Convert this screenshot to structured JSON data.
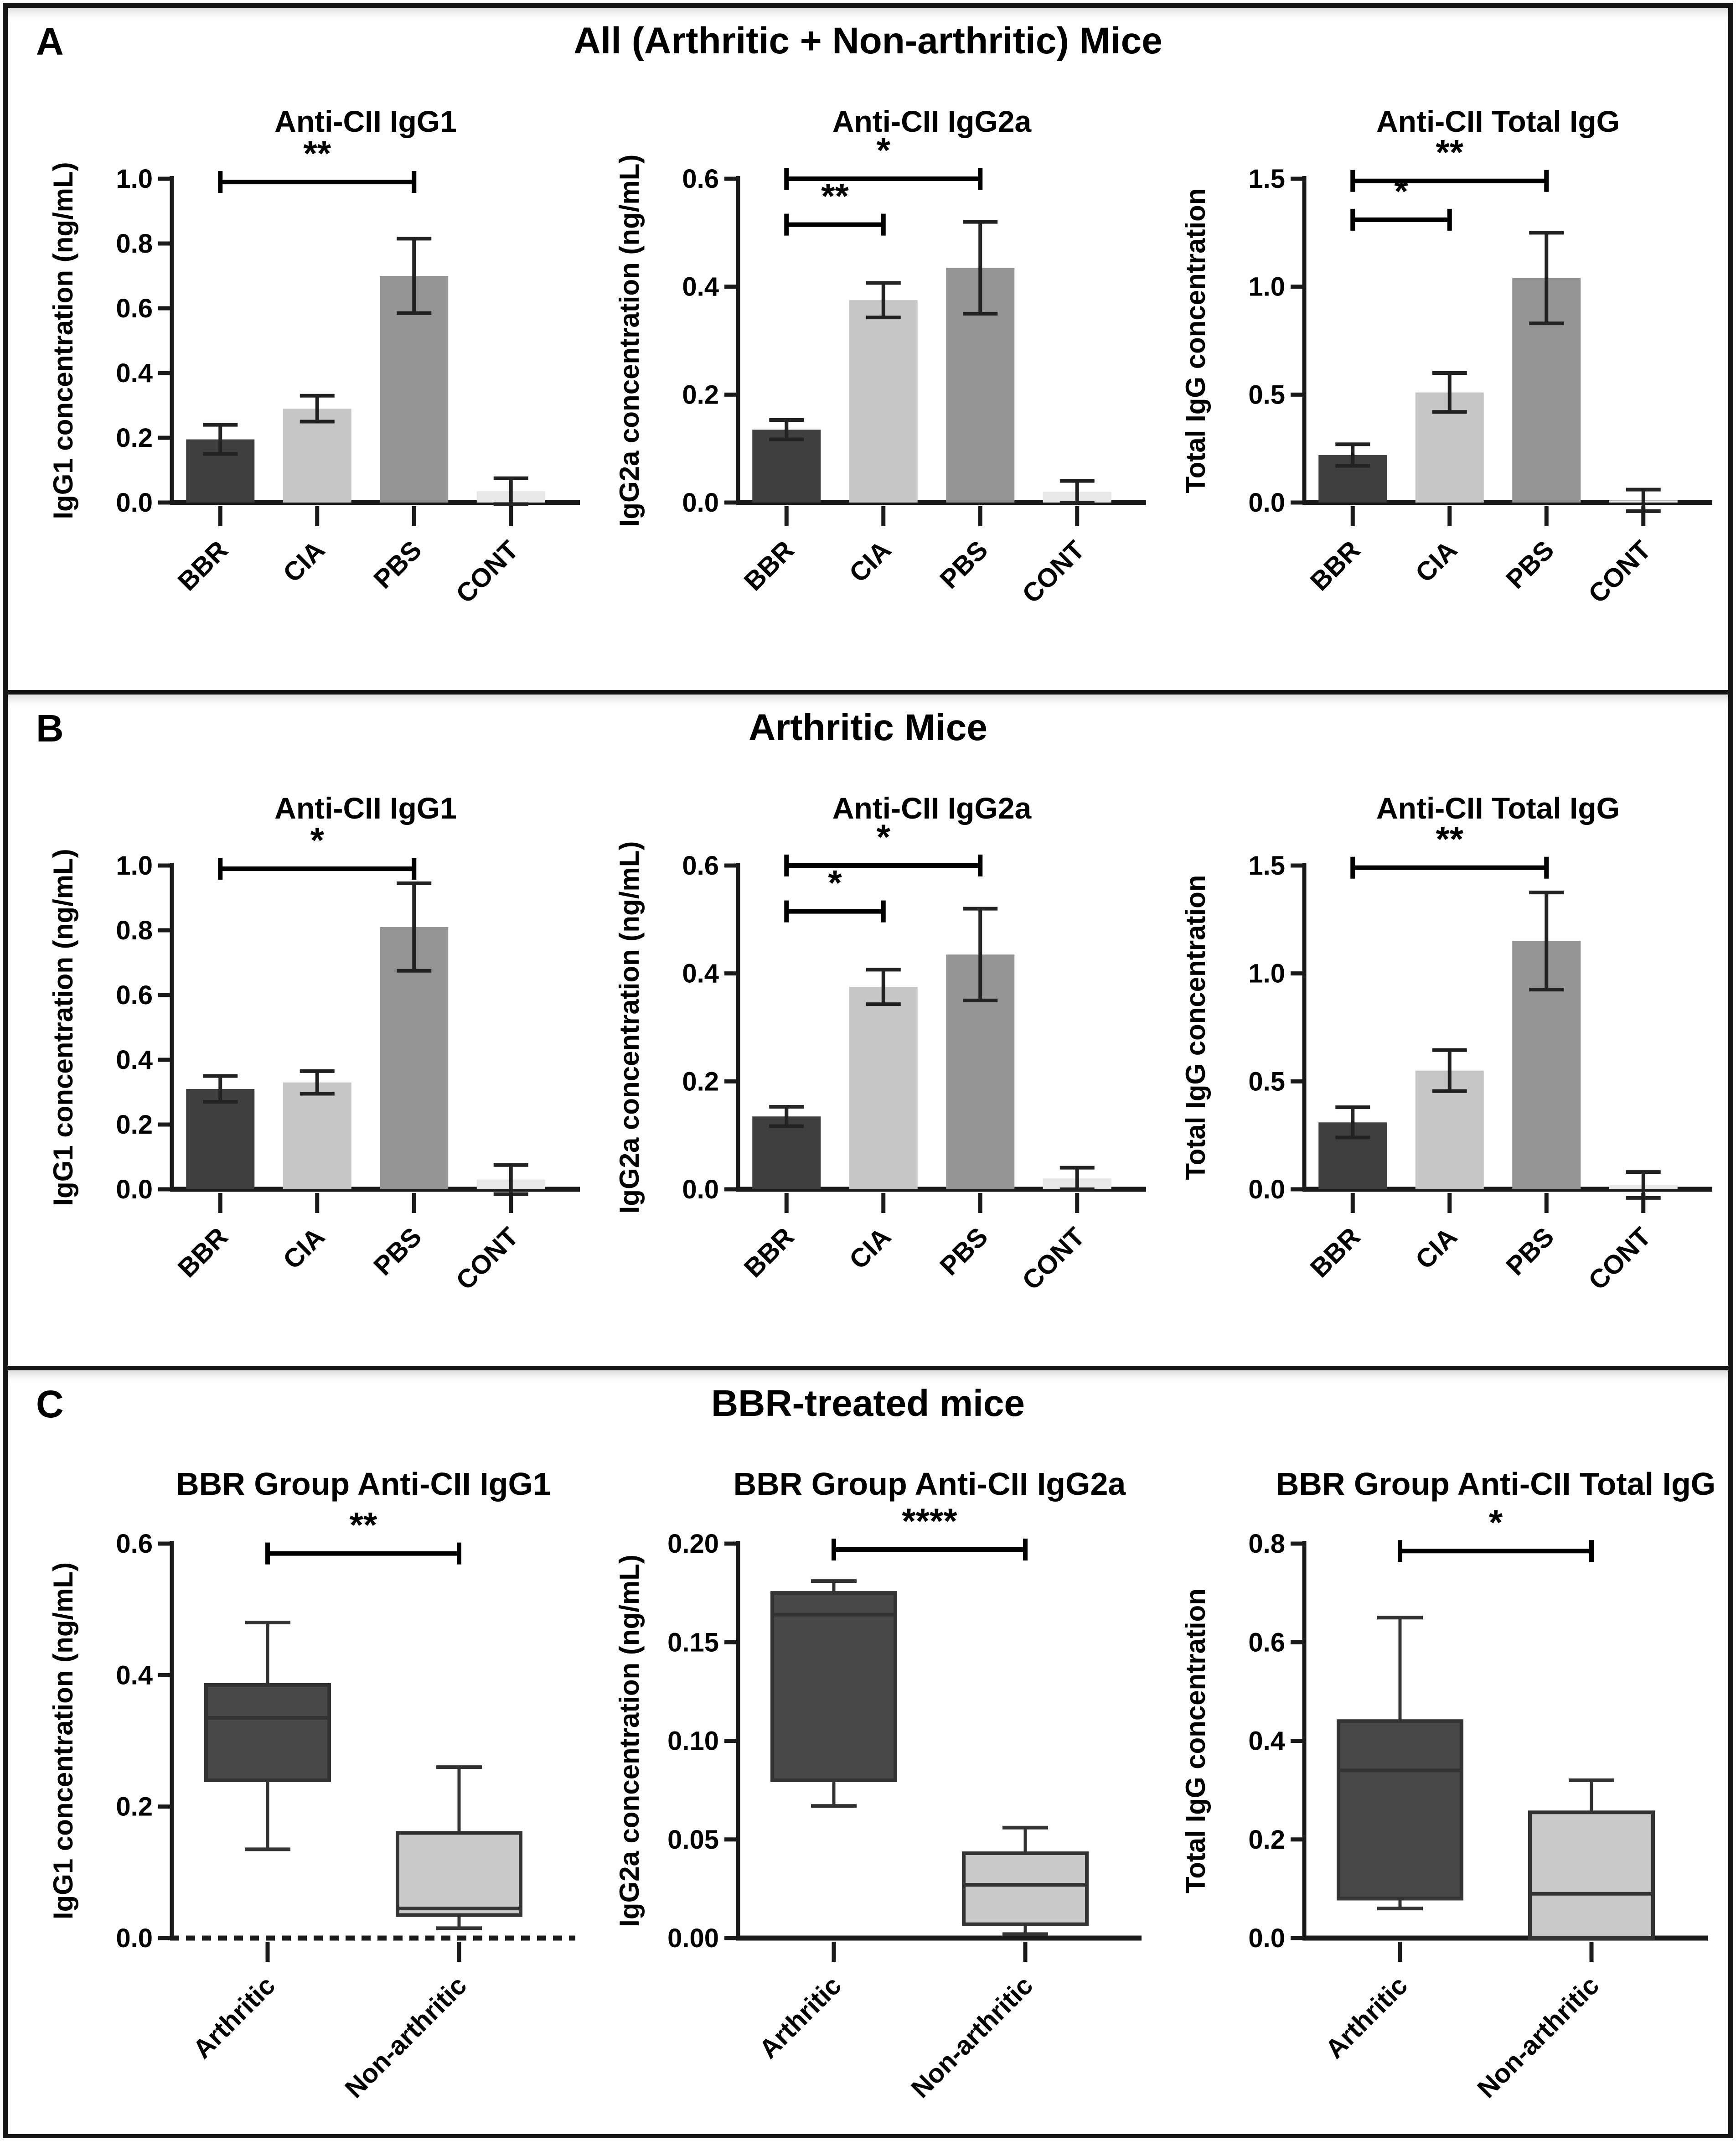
{
  "colors": {
    "axis": "#1a1a1a",
    "error_bar": "#222222",
    "bar_dark": "#3f3f3f",
    "bar_light": "#c6c6c6",
    "bar_mid": "#949494",
    "bar_faint": "#e8e8e8",
    "box_dark": "#484848",
    "box_light": "#c9c9c9",
    "box_outline": "#333333"
  },
  "panels": [
    {
      "letter": "A",
      "header": "All (Arthritic + Non-arthritic) Mice"
    },
    {
      "letter": "B",
      "header": "Arthritic Mice"
    },
    {
      "letter": "C",
      "header": "BBR-treated mice"
    }
  ],
  "chart_data": [
    {
      "panel": "A",
      "type": "bar",
      "title": "Anti-CII IgG1",
      "ylabel": "IgG1 concentration (ng/mL)",
      "ylim": [
        0,
        1.0
      ],
      "ytick_values": [
        0.0,
        0.2,
        0.4,
        0.6,
        0.8,
        1.0
      ],
      "ytick_labels": [
        "0.0",
        "0.2",
        "0.4",
        "0.6",
        "0.8",
        "1.0"
      ],
      "categories": [
        "BBR",
        "CIA",
        "PBS",
        "CONT"
      ],
      "values": [
        0.195,
        0.29,
        0.7,
        0.035
      ],
      "errors": [
        0.045,
        0.04,
        0.115,
        0.04
      ],
      "bar_colors": [
        "#3f3f3f",
        "#c6c6c6",
        "#949494",
        "#e8e8e8"
      ],
      "significance": [
        {
          "from": 0,
          "to": 2,
          "label": "**",
          "y": 0.99
        }
      ]
    },
    {
      "panel": "A",
      "type": "bar",
      "title": "Anti-CII IgG2a",
      "ylabel": "IgG2a concentration  (ng/mL)",
      "ylim": [
        0,
        0.6
      ],
      "ytick_values": [
        0.0,
        0.2,
        0.4,
        0.6
      ],
      "ytick_labels": [
        "0.0",
        "0.2",
        "0.4",
        "0.6"
      ],
      "categories": [
        "BBR",
        "CIA",
        "PBS",
        "CONT"
      ],
      "values": [
        0.135,
        0.375,
        0.435,
        0.02
      ],
      "errors": [
        0.018,
        0.032,
        0.085,
        0.02
      ],
      "bar_colors": [
        "#3f3f3f",
        "#c6c6c6",
        "#949494",
        "#e8e8e8"
      ],
      "significance": [
        {
          "from": 0,
          "to": 2,
          "label": "*",
          "y": 0.6
        },
        {
          "from": 0,
          "to": 1,
          "label": "**",
          "y": 0.515
        }
      ]
    },
    {
      "panel": "A",
      "type": "bar",
      "title": "Anti-CII Total IgG",
      "ylabel": "Total IgG concentration",
      "ylim": [
        0,
        1.5
      ],
      "ytick_values": [
        0.0,
        0.5,
        1.0,
        1.5
      ],
      "ytick_labels": [
        "0.0",
        "0.5",
        "1.0",
        "1.5"
      ],
      "categories": [
        "BBR",
        "CIA",
        "PBS",
        "CONT"
      ],
      "values": [
        0.22,
        0.51,
        1.04,
        0.01
      ],
      "errors": [
        0.05,
        0.09,
        0.21,
        0.05
      ],
      "bar_colors": [
        "#3f3f3f",
        "#c6c6c6",
        "#949494",
        "#e8e8e8"
      ],
      "significance": [
        {
          "from": 0,
          "to": 2,
          "label": "**",
          "y": 1.49
        },
        {
          "from": 0,
          "to": 1,
          "label": "*",
          "y": 1.31
        }
      ]
    },
    {
      "panel": "B",
      "type": "bar",
      "title": "Anti-CII IgG1",
      "ylabel": "IgG1 concentration (ng/mL)",
      "ylim": [
        0,
        1.0
      ],
      "ytick_values": [
        0.0,
        0.2,
        0.4,
        0.6,
        0.8,
        1.0
      ],
      "ytick_labels": [
        "0.0",
        "0.2",
        "0.4",
        "0.6",
        "0.8",
        "1.0"
      ],
      "categories": [
        "BBR",
        "CIA",
        "PBS",
        "CONT"
      ],
      "values": [
        0.31,
        0.33,
        0.81,
        0.03
      ],
      "errors": [
        0.04,
        0.035,
        0.135,
        0.045
      ],
      "bar_colors": [
        "#3f3f3f",
        "#c6c6c6",
        "#949494",
        "#e8e8e8"
      ],
      "significance": [
        {
          "from": 0,
          "to": 2,
          "label": "*",
          "y": 0.99
        }
      ]
    },
    {
      "panel": "B",
      "type": "bar",
      "title": "Anti-CII IgG2a",
      "ylabel": "IgG2a concentration  (ng/mL)",
      "ylim": [
        0,
        0.6
      ],
      "ytick_values": [
        0.0,
        0.2,
        0.4,
        0.6
      ],
      "ytick_labels": [
        "0.0",
        "0.2",
        "0.4",
        "0.6"
      ],
      "categories": [
        "BBR",
        "CIA",
        "PBS",
        "CONT"
      ],
      "values": [
        0.135,
        0.375,
        0.435,
        0.02
      ],
      "errors": [
        0.018,
        0.032,
        0.085,
        0.02
      ],
      "bar_colors": [
        "#3f3f3f",
        "#c6c6c6",
        "#949494",
        "#e8e8e8"
      ],
      "significance": [
        {
          "from": 0,
          "to": 2,
          "label": "*",
          "y": 0.6
        },
        {
          "from": 0,
          "to": 1,
          "label": "*",
          "y": 0.515
        }
      ]
    },
    {
      "panel": "B",
      "type": "bar",
      "title": "Anti-CII Total IgG",
      "ylabel": "Total IgG concentration",
      "ylim": [
        0,
        1.5
      ],
      "ytick_values": [
        0.0,
        0.5,
        1.0,
        1.5
      ],
      "ytick_labels": [
        "0.0",
        "0.5",
        "1.0",
        "1.5"
      ],
      "categories": [
        "BBR",
        "CIA",
        "PBS",
        "CONT"
      ],
      "values": [
        0.31,
        0.55,
        1.15,
        0.02
      ],
      "errors": [
        0.07,
        0.095,
        0.225,
        0.06
      ],
      "bar_colors": [
        "#3f3f3f",
        "#c6c6c6",
        "#949494",
        "#e8e8e8"
      ],
      "significance": [
        {
          "from": 0,
          "to": 2,
          "label": "**",
          "y": 1.49
        }
      ]
    },
    {
      "panel": "C",
      "type": "box",
      "title": "BBR Group Anti-CII IgG1",
      "ylabel": "IgG1 concentration (ng/mL)",
      "ylim": [
        0,
        0.6
      ],
      "ytick_values": [
        0.0,
        0.2,
        0.4,
        0.6
      ],
      "ytick_labels": [
        "0.0",
        "0.2",
        "0.4",
        "0.6"
      ],
      "categories": [
        "Arthritic",
        "Non-arthritic"
      ],
      "boxes": [
        {
          "whisker_low": 0.135,
          "q1": 0.24,
          "median": 0.335,
          "q3": 0.385,
          "whisker_high": 0.48,
          "color": "#484848"
        },
        {
          "whisker_low": 0.015,
          "q1": 0.035,
          "median": 0.045,
          "q3": 0.16,
          "whisker_high": 0.26,
          "color": "#c9c9c9"
        }
      ],
      "significance": [
        {
          "from": 0,
          "to": 1,
          "label": "**",
          "y": 0.585
        }
      ],
      "baseline_dashed": true
    },
    {
      "panel": "C",
      "type": "box",
      "title": "BBR Group Anti-CII IgG2a",
      "ylabel": "IgG2a concentration  (ng/mL)",
      "ylim": [
        0,
        0.2
      ],
      "ytick_values": [
        0.0,
        0.05,
        0.1,
        0.15,
        0.2
      ],
      "ytick_labels": [
        "0.00",
        "0.05",
        "0.10",
        "0.15",
        "0.20"
      ],
      "categories": [
        "Arthritic",
        "Non-arthritic"
      ],
      "boxes": [
        {
          "whisker_low": 0.067,
          "q1": 0.08,
          "median": 0.164,
          "q3": 0.175,
          "whisker_high": 0.181,
          "color": "#484848"
        },
        {
          "whisker_low": 0.002,
          "q1": 0.007,
          "median": 0.027,
          "q3": 0.043,
          "whisker_high": 0.056,
          "color": "#c9c9c9"
        }
      ],
      "significance": [
        {
          "from": 0,
          "to": 1,
          "label": "****",
          "y": 0.197
        }
      ],
      "baseline_dashed": false
    },
    {
      "panel": "C",
      "type": "box",
      "title": "BBR Group Anti-CII Total IgG",
      "ylabel": "Total IgG concentration",
      "ylim": [
        0,
        0.8
      ],
      "ytick_values": [
        0.0,
        0.2,
        0.4,
        0.6,
        0.8
      ],
      "ytick_labels": [
        "0.0",
        "0.2",
        "0.4",
        "0.6",
        "0.8"
      ],
      "categories": [
        "Arthritic",
        "Non-arthritic"
      ],
      "boxes": [
        {
          "whisker_low": 0.06,
          "q1": 0.08,
          "median": 0.34,
          "q3": 0.44,
          "whisker_high": 0.65,
          "color": "#484848"
        },
        {
          "whisker_low": null,
          "q1": 0.0,
          "median": 0.09,
          "q3": 0.255,
          "whisker_high": 0.32,
          "color": "#c9c9c9"
        }
      ],
      "significance": [
        {
          "from": 0,
          "to": 1,
          "label": "*",
          "y": 0.785
        }
      ],
      "baseline_dashed": false
    }
  ]
}
